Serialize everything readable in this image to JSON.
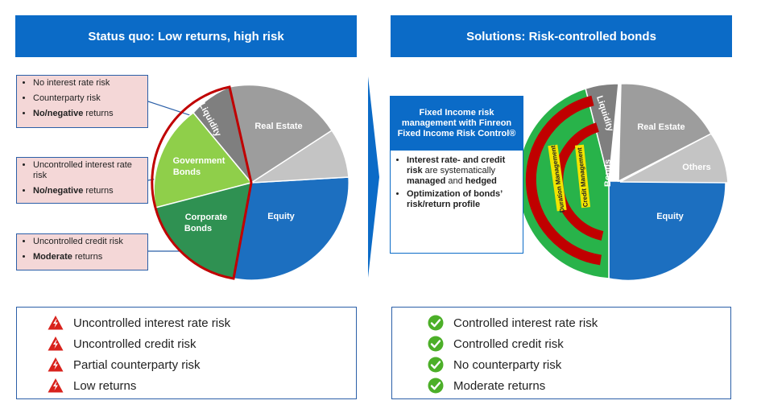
{
  "left": {
    "header": "Status quo: Low returns, high risk",
    "notes": [
      {
        "items": [
          {
            "text": "No interest rate risk"
          },
          {
            "text": "Counterparty risk"
          },
          {
            "bold": "No/negative",
            "text": " returns"
          }
        ]
      },
      {
        "items": [
          {
            "text": "Uncontrolled interest rate risk"
          },
          {
            "bold": "No/negative",
            "text": " returns"
          }
        ]
      },
      {
        "items": [
          {
            "text": "Uncontrolled credit risk"
          },
          {
            "bold": "Moderate",
            "text": " returns"
          }
        ]
      }
    ],
    "pie_labels": {
      "liquidity": "Liquidity",
      "real_estate": "Real Estate",
      "government_1": "Government",
      "government_2": "Bonds",
      "corporate_1": "Corporate",
      "corporate_2": "Bonds",
      "equity": "Equity"
    },
    "bottom": [
      {
        "text": "Uncontrolled interest rate risk",
        "icon": "warning-icon"
      },
      {
        "text": "Uncontrolled credit risk",
        "icon": "warning-icon"
      },
      {
        "text": "Partial counterparty risk",
        "icon": "warning-icon"
      },
      {
        "text": "Low returns",
        "icon": "warning-icon"
      }
    ]
  },
  "right": {
    "header": "Solutions: Risk-controlled bonds",
    "fi_box": {
      "title": "Fixed Income risk management with Finreon Fixed Income Risk Control®",
      "bullet1_parts": [
        "Interest rate- and credit risk",
        " are systematically ",
        "managed",
        " and ",
        "hedged"
      ],
      "bullet2": "Optimization of bonds’ risk/return profile"
    },
    "pie_labels": {
      "liquidity": "Liquidity",
      "real_estate": "Real Estate",
      "others": "Others",
      "bonds": "Bonds",
      "equity": "Equity",
      "duration_mgmt": "Duration Management",
      "credit_mgmt": "Credit Management"
    },
    "bottom": [
      {
        "text": "Controlled interest rate risk",
        "icon": "check-icon"
      },
      {
        "text": "Controlled credit risk",
        "icon": "check-icon"
      },
      {
        "text": "No counterparty risk",
        "icon": "check-icon"
      },
      {
        "text": "Moderate returns",
        "icon": "check-icon"
      }
    ]
  },
  "colors": {
    "header_blue": "#0b6bc7",
    "note_pink": "#f4d7d7",
    "equity_blue": "#1c6fc0",
    "real_estate_gray": "#9d9d9d",
    "others_gray": "#c4c4c4",
    "liquidity_gray": "#7f7f7f",
    "government_green": "#8fcf4a",
    "corporate_green": "#2f9152",
    "bonds_green": "#28b34a",
    "risk_red": "#c00000",
    "check_green": "#4caf28",
    "warning_red": "#d8221c"
  }
}
